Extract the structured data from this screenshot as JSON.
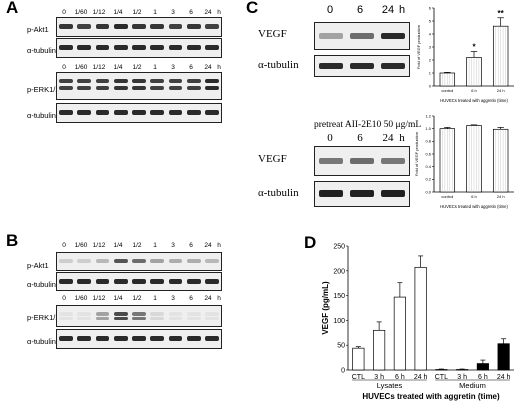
{
  "panelA": {
    "letter": "A",
    "lanes": [
      "0",
      "1/60",
      "1/12",
      "1/4",
      "1/2",
      "1",
      "3",
      "6",
      "24",
      "h"
    ],
    "lanes2": [
      "0",
      "1/60",
      "1/12",
      "1/4",
      "1/2",
      "1",
      "3",
      "6",
      "24",
      "h"
    ],
    "rows": [
      "p-Akt1",
      "α-tubulin",
      "p-ERK1/2",
      "α-tubulin"
    ]
  },
  "panelB": {
    "letter": "B",
    "lanes": [
      "0",
      "1/60",
      "1/12",
      "1/4",
      "1/2",
      "1",
      "3",
      "6",
      "24",
      "h"
    ],
    "lanes2": [
      "0",
      "1/60",
      "1/12",
      "1/4",
      "1/2",
      "1",
      "3",
      "6",
      "24",
      "h"
    ],
    "rows": [
      "p-Akt1",
      "α-tubulin",
      "p-ERK1/2",
      "α-tubulin"
    ]
  },
  "panelC": {
    "letter": "C",
    "top": {
      "lanes": [
        "0",
        "6",
        "24",
        "h"
      ],
      "rows": [
        "VEGF",
        "α-tubulin"
      ]
    },
    "bottom": {
      "title": "pretreat AII-2E10 50 μg/mL",
      "lanes": [
        "0",
        "6",
        "24",
        "h"
      ],
      "rows": [
        "VEGF",
        "α-tubulin"
      ]
    }
  },
  "panelD": {
    "letter": "D"
  },
  "chart_data": [
    {
      "type": "bar",
      "panel": "C-top",
      "categories": [
        "control",
        "6 h",
        "24 h"
      ],
      "values": [
        1.0,
        2.2,
        4.6
      ],
      "errors": [
        0.05,
        0.45,
        0.65
      ],
      "significance": [
        "",
        "*",
        "**"
      ],
      "ylabel": "Fold of VEGF production",
      "xlabel": "HUVECs treated with aggretin (time)",
      "ylim": [
        0,
        6
      ],
      "yticks": [
        "0",
        "1",
        "2",
        "3",
        "4",
        "5",
        "6"
      ]
    },
    {
      "type": "bar",
      "panel": "C-bottom",
      "categories": [
        "control",
        "6 h",
        "24 h"
      ],
      "values": [
        1.0,
        1.05,
        0.99
      ],
      "errors": [
        0.02,
        0.01,
        0.03
      ],
      "ylabel": "Fold of VEGF production",
      "xlabel": "HUVECs treated with aggretin (time)",
      "ylim": [
        0.0,
        1.2
      ],
      "yticks": [
        "0.0",
        "0.2",
        "0.4",
        "0.6",
        "0.8",
        "1.0",
        "1.2"
      ]
    },
    {
      "type": "bar",
      "panel": "D",
      "categories": [
        "CTL",
        "3 h",
        "6 h",
        "24 h",
        "CTL",
        "3 h",
        "6 h",
        "24 h"
      ],
      "groups": [
        "Lysates",
        "Medium"
      ],
      "values": [
        44,
        80,
        147,
        207,
        1,
        1,
        13,
        53
      ],
      "errors": [
        3,
        17,
        29,
        23,
        1,
        1,
        7,
        10
      ],
      "fills": [
        "#ffffff",
        "#ffffff",
        "#ffffff",
        "#ffffff",
        "#000000",
        "#000000",
        "#000000",
        "#000000"
      ],
      "ylabel": "VEGF (pg/mL)",
      "xlabel": "HUVECs treated with aggretin (time)",
      "ylim": [
        0,
        250
      ],
      "yticks": [
        "0",
        "50",
        "100",
        "150",
        "200",
        "250"
      ]
    }
  ]
}
